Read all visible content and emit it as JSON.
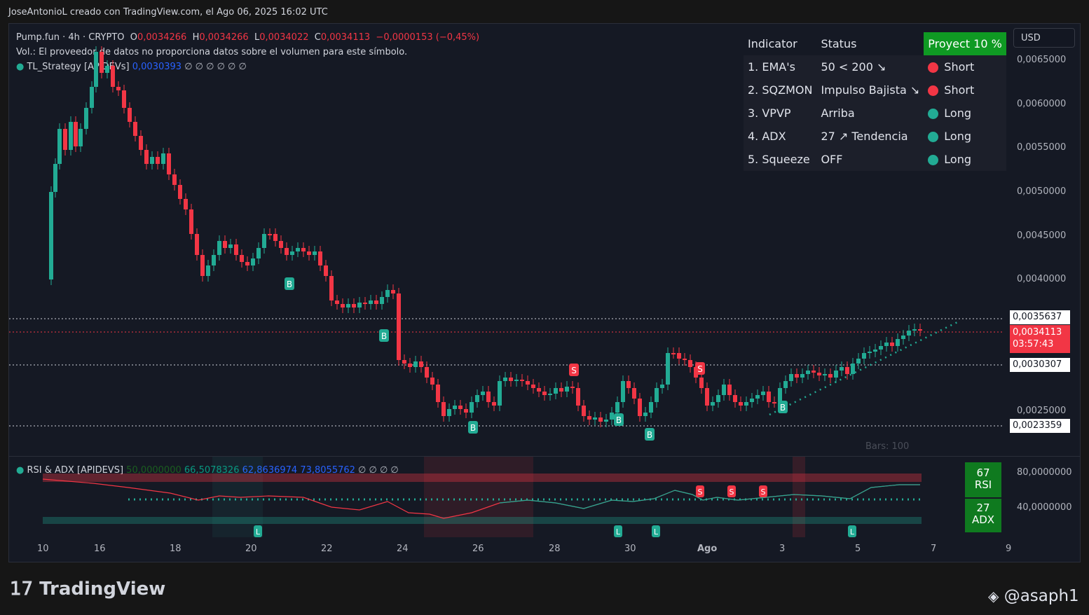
{
  "header": {
    "attribution": "JoseAntonioL creado con TradingView.com, el Ago 06, 2025 16:02 UTC"
  },
  "legend": {
    "symbol": "Pump.fun · 4h · CRYPTO",
    "o_label": "O",
    "o_value": "0,0034266",
    "h_label": "H",
    "h_value": "0,0034266",
    "l_label": "L",
    "l_value": "0,0034022",
    "c_label": "C",
    "c_value": "0,0034113",
    "change": "−0,0000153 (−0,45%)",
    "volume_note": "Vol.: El proveedor de datos no proporciona datos sobre el volumen para este símbolo.",
    "strategy_name": "TL_Strategy [APIDEVs]",
    "strategy_value": "0,0030393",
    "strategy_extra": "∅ ∅ ∅ ∅ ∅ ∅"
  },
  "currency": "USD",
  "price_axis": [
    "0,0065000",
    "0,0060000",
    "0,0055000",
    "0,0050000",
    "0,0045000",
    "0,0040000",
    "0,0025000"
  ],
  "price_tags": {
    "upper": "0,0035637",
    "current": "0,0034113",
    "countdown": "03:57:43",
    "middle": "0,0030307",
    "lower": "0,0023359"
  },
  "indicator_table": {
    "headers": {
      "indicator": "Indicator",
      "status": "Status",
      "proyect": "Proyect 10 %"
    },
    "rows": [
      {
        "name": "1. EMA's",
        "status": "50 < 200 ↘",
        "signal": "Short",
        "signal_color": "#f23645"
      },
      {
        "name": "2. SQZMON",
        "status": "Impulso Bajista ↘",
        "signal": "Short",
        "signal_color": "#f23645"
      },
      {
        "name": "3. VPVP",
        "status": "Arriba",
        "signal": "Long",
        "signal_color": "#22ab94"
      },
      {
        "name": "4. ADX",
        "status": "27 ↗ Tendencia",
        "signal": "Long",
        "signal_color": "#22ab94"
      },
      {
        "name": "5. Squeeze",
        "status": "OFF",
        "signal": "Long",
        "signal_color": "#22ab94"
      }
    ]
  },
  "bars_label": "Bars: 100",
  "osc": {
    "name": "RSI & ADX [APIDEVS]",
    "v1": "50,0000000",
    "v2": "66,5078326",
    "v3": "62,8636974",
    "v4": "73,8055762",
    "extra": "∅ ∅ ∅ ∅",
    "axis_high": "80,0000000",
    "axis_low": "40,0000000",
    "rsi_value": "67",
    "rsi_label": "RSI",
    "adx_value": "27",
    "adx_label": "ADX"
  },
  "time_axis": [
    "10",
    "16",
    "18",
    "20",
    "22",
    "24",
    "26",
    "28",
    "30",
    "Ago",
    "3",
    "5",
    "7",
    "9"
  ],
  "markers": {
    "buy": "B",
    "sell": "S",
    "long": "L"
  },
  "footer": {
    "brand": "TradingView",
    "handle": "@asaph1"
  },
  "colors": {
    "up": "#22ab94",
    "down": "#f23645",
    "signal_box": "#0f7a1f",
    "proyect": "#0f9a23"
  }
}
